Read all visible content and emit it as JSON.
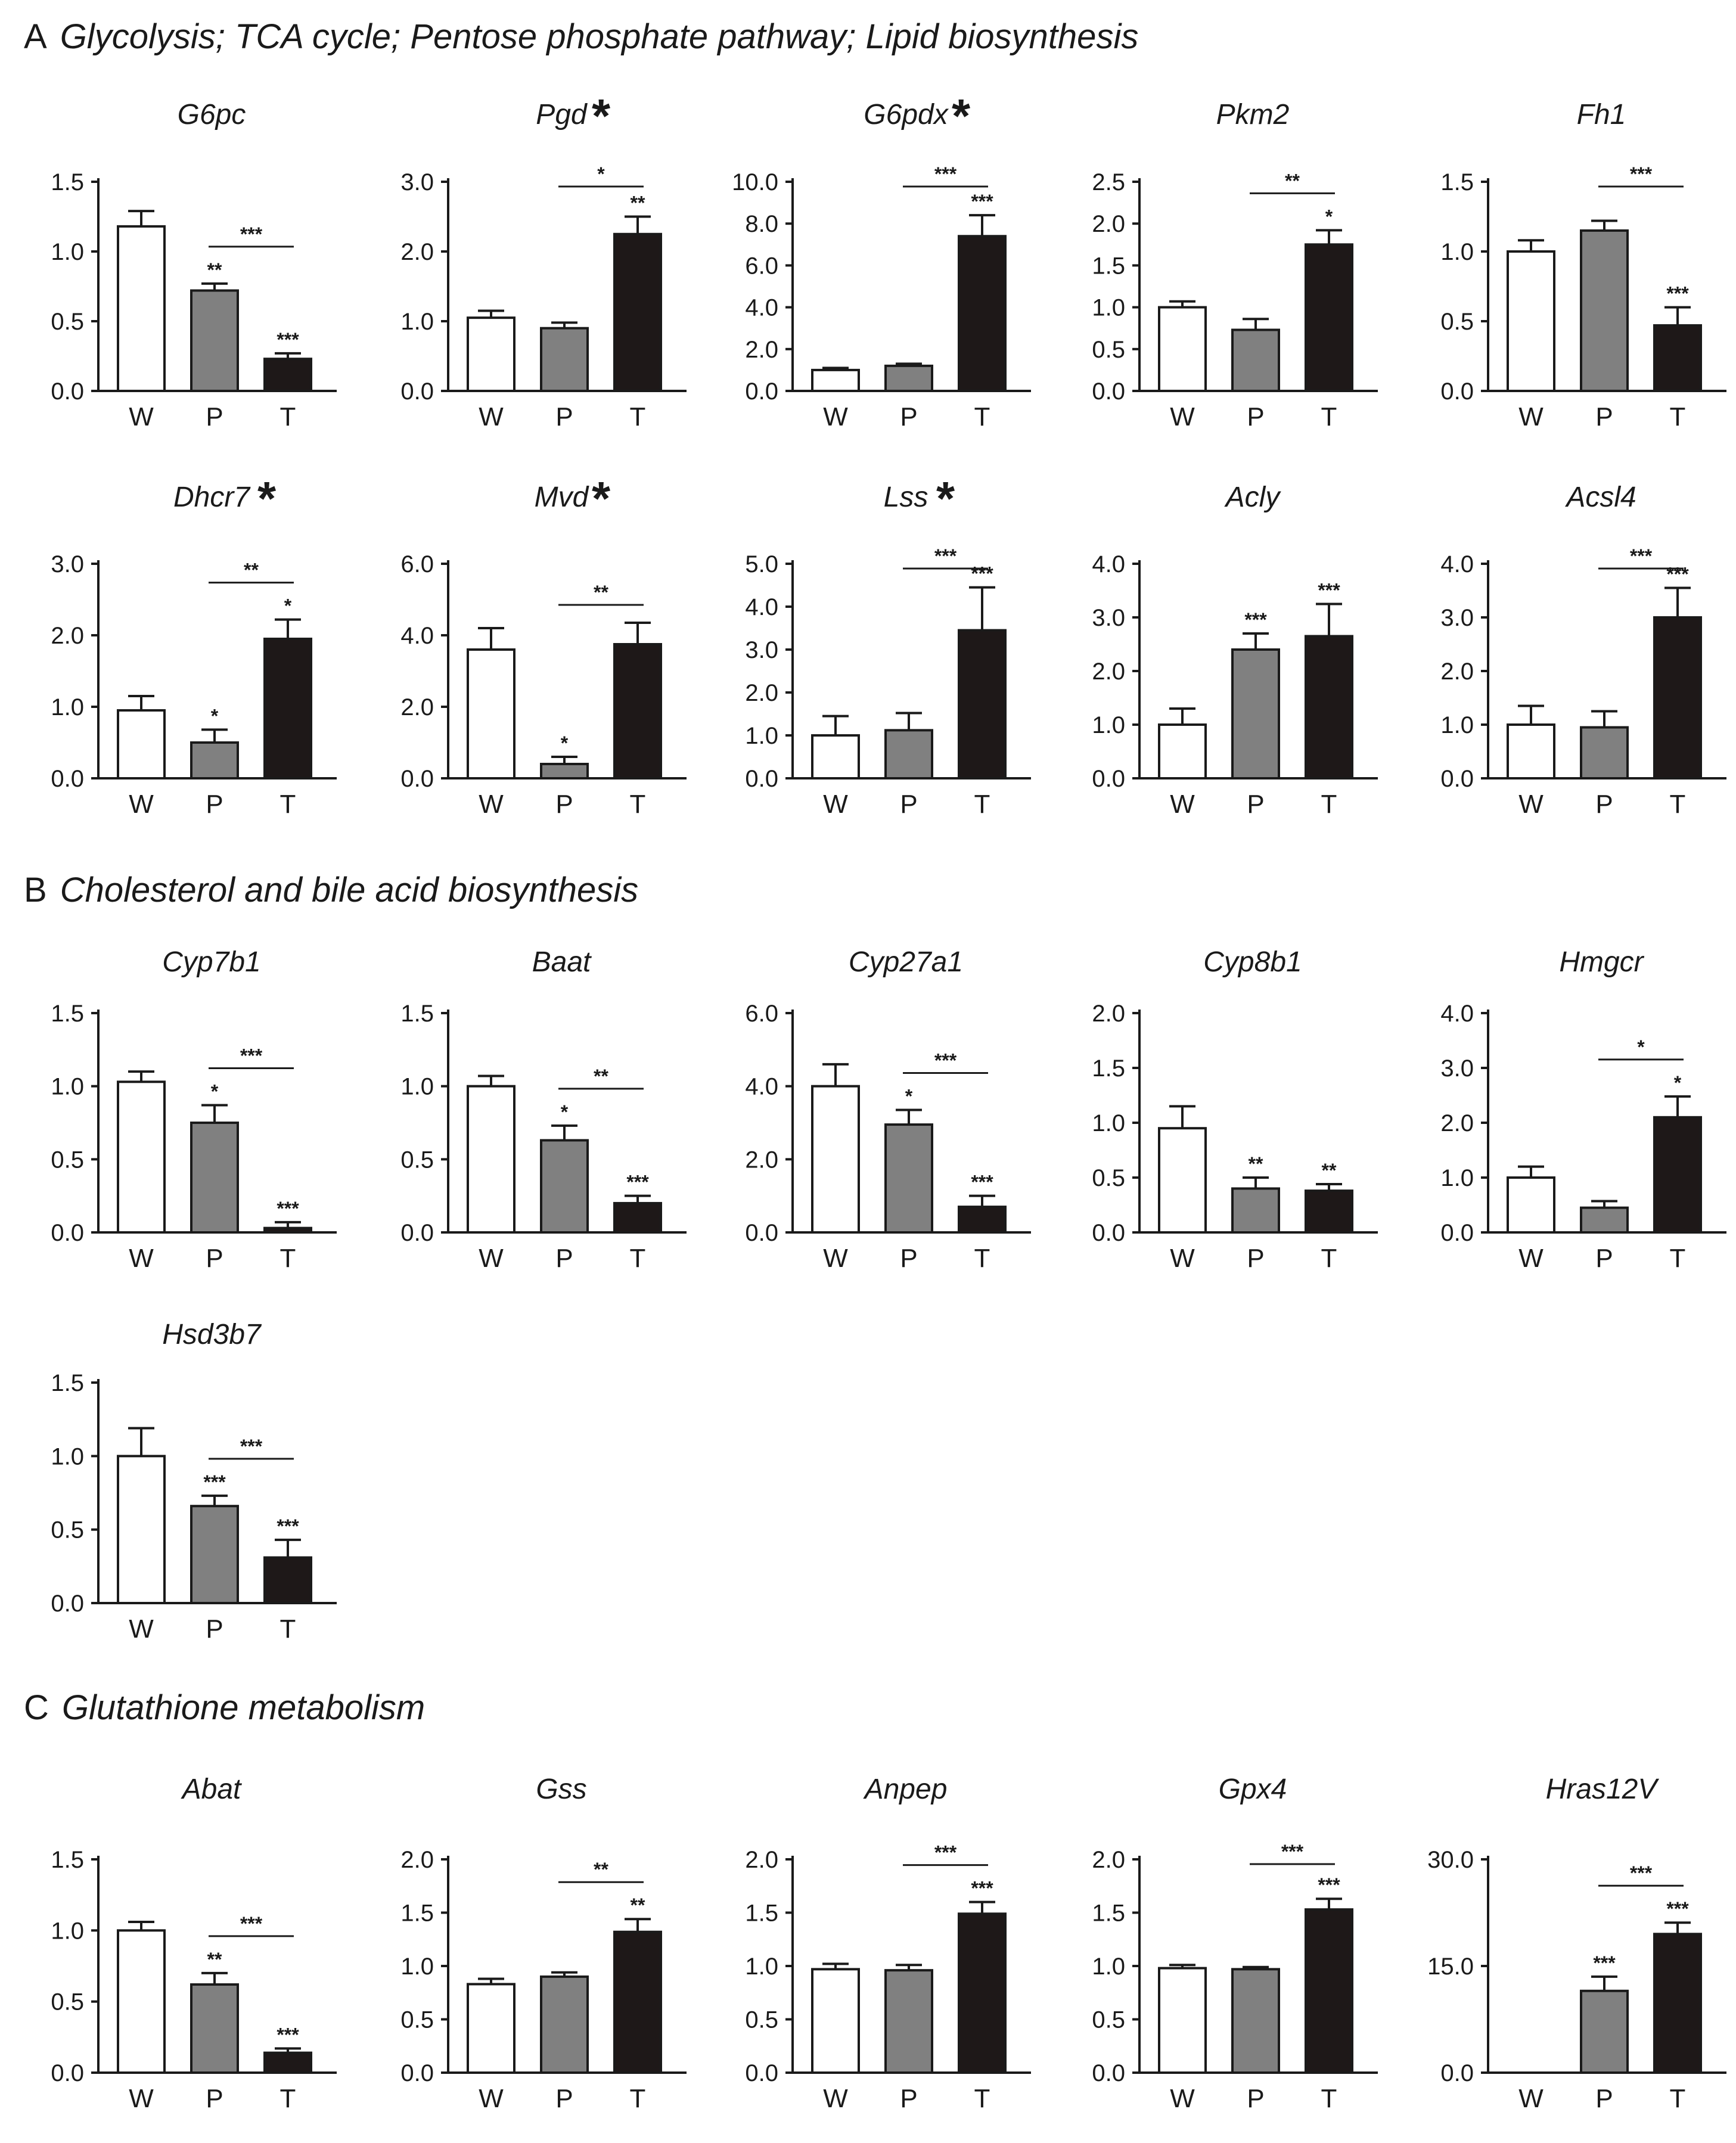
{
  "sections": {
    "a": {
      "letter": "A",
      "title": "Glycolysis; TCA cycle; Pentose phosphate pathway; Lipid biosynthesis"
    },
    "b": {
      "letter": "B",
      "title": "Cholesterol and bile acid biosynthesis"
    },
    "c": {
      "letter": "C",
      "title": "Glutathione metabolism"
    }
  },
  "colors": {
    "W": "#ffffff",
    "P": "#808080",
    "T": "#1e1818",
    "axis": "#1a1a1a"
  },
  "chart_data": [
    {
      "type": "bar",
      "section": "A",
      "title": "G6pc",
      "title_star": false,
      "categories": [
        "W",
        "P",
        "T"
      ],
      "values": [
        1.18,
        0.72,
        0.23
      ],
      "errors": [
        0.11,
        0.05,
        0.04
      ],
      "yticks": [
        "0.0",
        "0.5",
        "1.0",
        "1.5"
      ],
      "ylim": [
        0,
        1.5
      ],
      "bar_sig": [
        "",
        "**",
        "***"
      ],
      "bracket": {
        "from": "P",
        "to": "T",
        "label": "***"
      }
    },
    {
      "type": "bar",
      "section": "A",
      "title": "Pgd",
      "title_star": true,
      "categories": [
        "W",
        "P",
        "T"
      ],
      "values": [
        1.05,
        0.9,
        2.25
      ],
      "errors": [
        0.1,
        0.08,
        0.25
      ],
      "yticks": [
        "0.0",
        "1.0",
        "2.0",
        "3.0"
      ],
      "ylim": [
        0,
        3.0
      ],
      "bar_sig": [
        "",
        "",
        "**"
      ],
      "bracket": {
        "from": "P",
        "to": "T",
        "label": "*"
      }
    },
    {
      "type": "bar",
      "section": "A",
      "title": "G6pdx",
      "title_star": true,
      "categories": [
        "W",
        "P",
        "T"
      ],
      "values": [
        1.0,
        1.2,
        7.4
      ],
      "errors": [
        0.1,
        0.1,
        1.0
      ],
      "yticks": [
        "0.0",
        "2.0",
        "4.0",
        "6.0",
        "8.0",
        "10.0"
      ],
      "ylim": [
        0,
        10.0
      ],
      "bar_sig": [
        "",
        "",
        "***"
      ],
      "bracket": {
        "from": "P",
        "to": "T",
        "label": "***"
      }
    },
    {
      "type": "bar",
      "section": "A",
      "title": "Pkm2",
      "title_star": false,
      "categories": [
        "W",
        "P",
        "T"
      ],
      "values": [
        1.0,
        0.73,
        1.75
      ],
      "errors": [
        0.07,
        0.13,
        0.17
      ],
      "yticks": [
        "0.0",
        "0.5",
        "1.0",
        "1.5",
        "2.0",
        "2.5"
      ],
      "ylim": [
        0,
        2.5
      ],
      "bar_sig": [
        "",
        "",
        "*"
      ],
      "bracket": {
        "from": "P",
        "to": "T",
        "label": "**"
      }
    },
    {
      "type": "bar",
      "section": "A",
      "title": "Fh1",
      "title_star": false,
      "categories": [
        "W",
        "P",
        "T"
      ],
      "values": [
        1.0,
        1.15,
        0.47
      ],
      "errors": [
        0.08,
        0.07,
        0.13
      ],
      "yticks": [
        "0.0",
        "0.5",
        "1.0",
        "1.5"
      ],
      "ylim": [
        0,
        1.5
      ],
      "bar_sig": [
        "",
        "",
        "***"
      ],
      "bracket": {
        "from": "P",
        "to": "T",
        "label": "***"
      }
    },
    {
      "type": "bar",
      "section": "A",
      "title": "Dhcr7",
      "title_star": true,
      "categories": [
        "W",
        "P",
        "T"
      ],
      "values": [
        0.95,
        0.5,
        1.95
      ],
      "errors": [
        0.2,
        0.18,
        0.27
      ],
      "yticks": [
        "0.0",
        "1.0",
        "2.0",
        "3.0"
      ],
      "ylim": [
        0,
        3.0
      ],
      "bar_sig": [
        "",
        "*",
        "*"
      ],
      "bracket": {
        "from": "P",
        "to": "T",
        "label": "**"
      }
    },
    {
      "type": "bar",
      "section": "A",
      "title": "Mvd",
      "title_star": true,
      "categories": [
        "W",
        "P",
        "T"
      ],
      "values": [
        3.6,
        0.4,
        3.75
      ],
      "errors": [
        0.6,
        0.2,
        0.6
      ],
      "yticks": [
        "0.0",
        "2.0",
        "4.0",
        "6.0"
      ],
      "ylim": [
        0,
        6.0
      ],
      "bar_sig": [
        "",
        "*",
        ""
      ],
      "bracket": {
        "from": "P",
        "to": "T",
        "label": "**"
      }
    },
    {
      "type": "bar",
      "section": "A",
      "title": "Lss",
      "title_star": true,
      "categories": [
        "W",
        "P",
        "T"
      ],
      "values": [
        1.0,
        1.12,
        3.45
      ],
      "errors": [
        0.45,
        0.4,
        1.0
      ],
      "yticks": [
        "0.0",
        "1.0",
        "2.0",
        "3.0",
        "4.0",
        "5.0"
      ],
      "ylim": [
        0,
        5.0
      ],
      "bar_sig": [
        "",
        "",
        "***"
      ],
      "bracket": {
        "from": "P",
        "to": "T",
        "label": "***"
      }
    },
    {
      "type": "bar",
      "section": "A",
      "title": "Acly",
      "title_star": false,
      "categories": [
        "W",
        "P",
        "T"
      ],
      "values": [
        1.0,
        2.4,
        2.65
      ],
      "errors": [
        0.3,
        0.3,
        0.6
      ],
      "yticks": [
        "0.0",
        "1.0",
        "2.0",
        "3.0",
        "4.0"
      ],
      "ylim": [
        0,
        4.0
      ],
      "bar_sig": [
        "",
        "***",
        "***"
      ],
      "bracket": null
    },
    {
      "type": "bar",
      "section": "A",
      "title": "Acsl4",
      "title_star": false,
      "categories": [
        "W",
        "P",
        "T"
      ],
      "values": [
        1.0,
        0.95,
        3.0
      ],
      "errors": [
        0.35,
        0.3,
        0.55
      ],
      "yticks": [
        "0.0",
        "1.0",
        "2.0",
        "3.0",
        "4.0"
      ],
      "ylim": [
        0,
        4.0
      ],
      "bar_sig": [
        "",
        "",
        "***"
      ],
      "bracket": {
        "from": "P",
        "to": "T",
        "label": "***"
      }
    },
    {
      "type": "bar",
      "section": "B",
      "title": "Cyp7b1",
      "title_star": false,
      "categories": [
        "W",
        "P",
        "T"
      ],
      "values": [
        1.03,
        0.75,
        0.03
      ],
      "errors": [
        0.07,
        0.12,
        0.04
      ],
      "yticks": [
        "0.0",
        "0.5",
        "1.0",
        "1.5"
      ],
      "ylim": [
        0,
        1.5
      ],
      "bar_sig": [
        "",
        "*",
        "***"
      ],
      "bracket": {
        "from": "P",
        "to": "T",
        "label": "***"
      }
    },
    {
      "type": "bar",
      "section": "B",
      "title": "Baat",
      "title_star": false,
      "categories": [
        "W",
        "P",
        "T"
      ],
      "values": [
        1.0,
        0.63,
        0.2
      ],
      "errors": [
        0.07,
        0.1,
        0.05
      ],
      "yticks": [
        "0.0",
        "0.5",
        "1.0",
        "1.5"
      ],
      "ylim": [
        0,
        1.5
      ],
      "bar_sig": [
        "",
        "*",
        "***"
      ],
      "bracket": {
        "from": "P",
        "to": "T",
        "label": "**"
      }
    },
    {
      "type": "bar",
      "section": "B",
      "title": "Cyp27a1",
      "title_star": false,
      "categories": [
        "W",
        "P",
        "T"
      ],
      "values": [
        4.0,
        2.95,
        0.7
      ],
      "errors": [
        0.6,
        0.4,
        0.3
      ],
      "yticks": [
        "0.0",
        "2.0",
        "4.0",
        "6.0"
      ],
      "ylim": [
        0,
        6.0
      ],
      "bar_sig": [
        "",
        "*",
        "***"
      ],
      "bracket": {
        "from": "P",
        "to": "T",
        "label": "***"
      }
    },
    {
      "type": "bar",
      "section": "B",
      "title": "Cyp8b1",
      "title_star": false,
      "categories": [
        "W",
        "P",
        "T"
      ],
      "values": [
        0.95,
        0.4,
        0.38
      ],
      "errors": [
        0.2,
        0.1,
        0.06
      ],
      "yticks": [
        "0.0",
        "0.5",
        "1.0",
        "1.5",
        "2.0"
      ],
      "ylim": [
        0,
        2.0
      ],
      "bar_sig": [
        "",
        "**",
        "**"
      ],
      "bracket": null
    },
    {
      "type": "bar",
      "section": "B",
      "title": "Hmgcr",
      "title_star": false,
      "categories": [
        "W",
        "P",
        "T"
      ],
      "values": [
        1.0,
        0.45,
        2.1
      ],
      "errors": [
        0.2,
        0.12,
        0.38
      ],
      "yticks": [
        "0.0",
        "1.0",
        "2.0",
        "3.0",
        "4.0"
      ],
      "ylim": [
        0,
        4.0
      ],
      "bar_sig": [
        "",
        "",
        "*"
      ],
      "bracket": {
        "from": "P",
        "to": "T",
        "label": "*"
      }
    },
    {
      "type": "bar",
      "section": "B",
      "title": "Hsd3b7",
      "title_star": false,
      "categories": [
        "W",
        "P",
        "T"
      ],
      "values": [
        1.0,
        0.66,
        0.31
      ],
      "errors": [
        0.19,
        0.07,
        0.12
      ],
      "yticks": [
        "0.0",
        "0.5",
        "1.0",
        "1.5"
      ],
      "ylim": [
        0,
        1.5
      ],
      "bar_sig": [
        "",
        "***",
        "***"
      ],
      "bracket": {
        "from": "P",
        "to": "T",
        "label": "***"
      }
    },
    {
      "type": "bar",
      "section": "C",
      "title": "Abat",
      "title_star": false,
      "categories": [
        "W",
        "P",
        "T"
      ],
      "values": [
        1.0,
        0.62,
        0.14
      ],
      "errors": [
        0.06,
        0.08,
        0.03
      ],
      "yticks": [
        "0.0",
        "0.5",
        "1.0",
        "1.5"
      ],
      "ylim": [
        0,
        1.5
      ],
      "bar_sig": [
        "",
        "**",
        "***"
      ],
      "bracket": {
        "from": "P",
        "to": "T",
        "label": "***"
      }
    },
    {
      "type": "bar",
      "section": "C",
      "title": "Gss",
      "title_star": false,
      "categories": [
        "W",
        "P",
        "T"
      ],
      "values": [
        0.83,
        0.9,
        1.32
      ],
      "errors": [
        0.05,
        0.04,
        0.12
      ],
      "yticks": [
        "0.0",
        "0.5",
        "1.0",
        "1.5",
        "2.0"
      ],
      "ylim": [
        0,
        2.0
      ],
      "bar_sig": [
        "",
        "",
        "**"
      ],
      "bracket": {
        "from": "P",
        "to": "T",
        "label": "**"
      }
    },
    {
      "type": "bar",
      "section": "C",
      "title": "Anpep",
      "title_star": false,
      "categories": [
        "W",
        "P",
        "T"
      ],
      "values": [
        0.97,
        0.96,
        1.49
      ],
      "errors": [
        0.05,
        0.05,
        0.11
      ],
      "yticks": [
        "0.0",
        "0.5",
        "1.0",
        "1.5",
        "2.0"
      ],
      "ylim": [
        0,
        2.0
      ],
      "bar_sig": [
        "",
        "",
        "***"
      ],
      "bracket": {
        "from": "P",
        "to": "T",
        "label": "***"
      }
    },
    {
      "type": "bar",
      "section": "C",
      "title": "Gpx4",
      "title_star": false,
      "categories": [
        "W",
        "P",
        "T"
      ],
      "values": [
        0.98,
        0.97,
        1.53
      ],
      "errors": [
        0.03,
        0.02,
        0.1
      ],
      "yticks": [
        "0.0",
        "0.5",
        "1.0",
        "1.5",
        "2.0"
      ],
      "ylim": [
        0,
        2.0
      ],
      "bar_sig": [
        "",
        "",
        "***"
      ],
      "bracket": {
        "from": "P",
        "to": "T",
        "label": "***"
      }
    },
    {
      "type": "bar",
      "section": "C",
      "title": "Hras12V",
      "title_star": false,
      "categories": [
        "W",
        "P",
        "T"
      ],
      "values": [
        0.0,
        11.5,
        19.5
      ],
      "errors": [
        0.0,
        2.0,
        1.6
      ],
      "yticks": [
        "0.0",
        "15.0",
        "30.0"
      ],
      "ylim": [
        0,
        30.0
      ],
      "bar_sig": [
        "",
        "***",
        "***"
      ],
      "bracket": {
        "from": "P",
        "to": "T",
        "label": "***"
      }
    }
  ]
}
